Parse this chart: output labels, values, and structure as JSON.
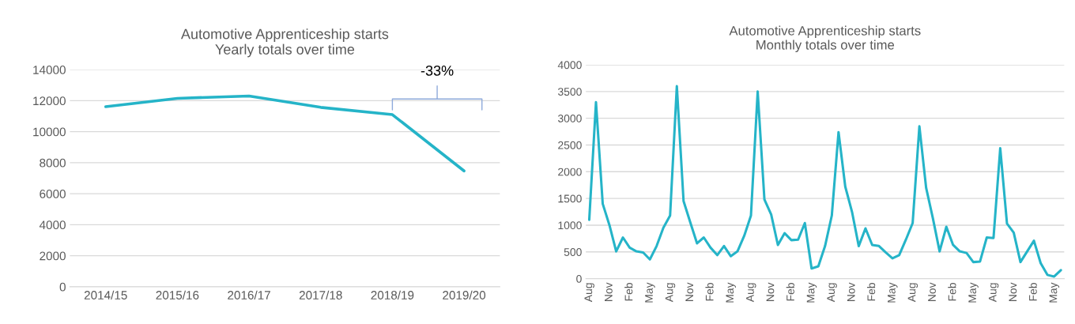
{
  "chart_data": [
    {
      "type": "line",
      "title": "Automotive Apprenticeship starts\nYearly totals over time",
      "categories": [
        "2014/15",
        "2015/16",
        "2016/17",
        "2017/18",
        "2018/19",
        "2019/20"
      ],
      "series": [
        {
          "color": "#25b4c8",
          "values": [
            11610,
            12150,
            12300,
            11570,
            11100,
            7470
          ]
        }
      ],
      "ylim": [
        0,
        14000
      ],
      "yticks": [
        0,
        2000,
        4000,
        6000,
        8000,
        10000,
        12000,
        14000
      ],
      "grid": "y",
      "legend": false,
      "marker": "none",
      "line_style": "solid",
      "annotations": [
        "-33%"
      ]
    },
    {
      "type": "line",
      "title": "Automotive Apprenticeship starts\nMonthly totals over time",
      "categories": [
        "Aug",
        null,
        null,
        "Nov",
        null,
        null,
        "Feb",
        null,
        null,
        "May",
        null,
        null,
        "Aug",
        null,
        null,
        "Nov",
        null,
        null,
        "Feb",
        null,
        null,
        "May",
        null,
        null,
        "Aug",
        null,
        null,
        "Nov",
        null,
        null,
        "Feb",
        null,
        null,
        "May",
        null,
        null,
        "Aug",
        null,
        null,
        "Nov",
        null,
        null,
        "Feb",
        null,
        null,
        "May",
        null,
        null,
        "Aug",
        null,
        null,
        "Nov",
        null,
        null,
        "Feb",
        null,
        null,
        "May",
        null,
        null,
        "Aug",
        null,
        null,
        "Nov",
        null,
        null,
        "Feb",
        null,
        null,
        "May",
        null
      ],
      "series": [
        {
          "color": "#25b4c8",
          "values": [
            1100,
            3300,
            1400,
            1000,
            510,
            770,
            580,
            510,
            490,
            360,
            610,
            950,
            1180,
            3600,
            1450,
            1050,
            660,
            770,
            580,
            440,
            610,
            420,
            510,
            800,
            1180,
            3500,
            1480,
            1200,
            630,
            850,
            720,
            730,
            1040,
            190,
            230,
            610,
            1180,
            2740,
            1720,
            1250,
            610,
            940,
            630,
            610,
            490,
            380,
            440,
            730,
            1040,
            2850,
            1700,
            1130,
            510,
            970,
            630,
            510,
            480,
            310,
            320,
            770,
            760,
            2440,
            1030,
            860,
            310,
            510,
            710,
            290,
            70,
            40,
            160
          ]
        }
      ],
      "ylim": [
        0,
        4000
      ],
      "yticks": [
        0,
        500,
        1000,
        1500,
        2000,
        2500,
        3000,
        3500,
        4000
      ],
      "grid": "y",
      "legend": false,
      "marker": "none",
      "line_style": "solid"
    }
  ]
}
